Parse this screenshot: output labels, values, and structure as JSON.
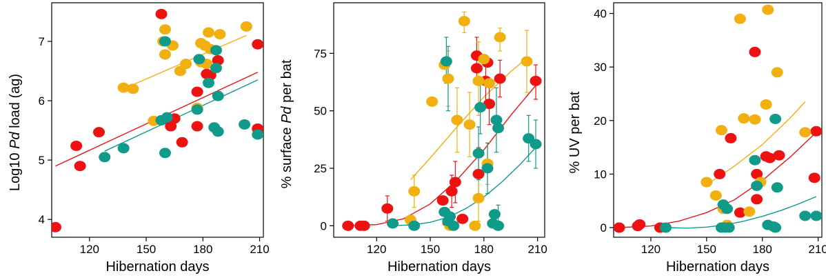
{
  "colors": {
    "red": "#ee1111",
    "orange": "#f2b010",
    "teal": "#109a8a"
  },
  "chart_data": [
    {
      "type": "scatter",
      "xlabel": "Hibernation days",
      "ylabel_parts": [
        "Log10 ",
        "Pd",
        " load (ag)"
      ],
      "xlim": [
        100,
        212
      ],
      "ylim": [
        3.7,
        7.65
      ],
      "xticks": [
        120,
        150,
        180,
        210
      ],
      "yticks": [
        4,
        5,
        6,
        7
      ],
      "series": [
        {
          "color_key": "red",
          "x": [
            102,
            113,
            115,
            125,
            158,
            163,
            165,
            169,
            177,
            177,
            182,
            184,
            188,
            209,
            209
          ],
          "y": [
            3.87,
            5.24,
            4.9,
            5.47,
            7.46,
            5.57,
            5.7,
            5.3,
            6.15,
            5.57,
            6.45,
            6.43,
            6.68,
            6.95,
            5.53
          ]
        },
        {
          "color_key": "orange",
          "x": [
            138,
            143,
            154,
            159,
            160,
            160,
            164,
            168,
            171,
            177,
            179,
            179,
            181,
            182,
            183,
            184,
            189,
            203
          ],
          "y": [
            6.22,
            6.2,
            5.66,
            7.0,
            6.78,
            7.2,
            6.93,
            6.5,
            6.62,
            5.88,
            6.97,
            6.65,
            6.93,
            6.62,
            7.15,
            6.87,
            7.12,
            7.25
          ]
        },
        {
          "color_key": "teal",
          "x": [
            128,
            138,
            158,
            160,
            160,
            161,
            177,
            178,
            183,
            186,
            187,
            187,
            188,
            188,
            202,
            209
          ],
          "y": [
            5.05,
            5.2,
            5.67,
            7.0,
            5.12,
            5.72,
            5.85,
            6.7,
            6.3,
            5.55,
            6.85,
            6.55,
            6.08,
            5.48,
            5.6,
            5.43
          ]
        }
      ],
      "fits": [
        {
          "color_key": "red",
          "x0": 102,
          "y0": 4.9,
          "x1": 209,
          "y1": 6.48
        },
        {
          "color_key": "orange",
          "x0": 138,
          "y0": 6.2,
          "x1": 203,
          "y1": 7.1
        },
        {
          "color_key": "teal",
          "x0": 128,
          "y0": 5.15,
          "x1": 209,
          "y1": 6.35
        }
      ]
    },
    {
      "type": "scatter",
      "xlabel": "Hibernation days",
      "ylabel_parts": [
        "% surface ",
        "Pd",
        " per bat"
      ],
      "xlim": [
        96,
        214
      ],
      "ylim": [
        -5,
        97
      ],
      "xticks": [
        120,
        150,
        180,
        210
      ],
      "yticks": [
        0,
        25,
        50,
        75
      ],
      "series": [
        {
          "color_key": "red",
          "x": [
            104,
            111,
            113,
            126,
            157,
            160,
            162,
            164,
            168,
            176,
            176,
            177,
            181,
            182,
            183,
            189,
            209
          ],
          "y": [
            0,
            0,
            0,
            7.5,
            11,
            1.5,
            15,
            19,
            3,
            74,
            68.5,
            22.5,
            63,
            71,
            53,
            64,
            63
          ]
        },
        {
          "color_key": "orange",
          "x": [
            139,
            141,
            151,
            158,
            160,
            161,
            165,
            169,
            172,
            175,
            177,
            177,
            180,
            182,
            183,
            189,
            204
          ],
          "y": [
            2.5,
            15,
            54,
            70,
            64,
            0,
            46,
            89,
            44,
            0,
            12,
            63,
            72.5,
            27,
            62,
            82,
            71.5
          ]
        },
        {
          "color_key": "teal",
          "x": [
            129,
            141,
            158,
            159,
            160,
            161,
            163,
            177,
            178,
            182,
            185,
            186,
            187,
            188,
            188,
            205,
            209
          ],
          "y": [
            1,
            0,
            6,
            71.5,
            2,
            4,
            0,
            31.5,
            51.5,
            25,
            1,
            5,
            46,
            42.5,
            0,
            38,
            35.5
          ]
        }
      ],
      "error_bars": [
        {
          "color_key": "red",
          "x": 126,
          "lo": 2,
          "hi": 13
        },
        {
          "color_key": "red",
          "x": 162,
          "lo": 8,
          "hi": 22
        },
        {
          "color_key": "red",
          "x": 164,
          "lo": 10,
          "hi": 28
        },
        {
          "color_key": "red",
          "x": 176,
          "lo": 62,
          "hi": 82
        },
        {
          "color_key": "red",
          "x": 177,
          "lo": 12,
          "hi": 34
        },
        {
          "color_key": "red",
          "x": 181,
          "lo": 54,
          "hi": 72
        },
        {
          "color_key": "red",
          "x": 183,
          "lo": 44,
          "hi": 62
        },
        {
          "color_key": "red",
          "x": 189,
          "lo": 56,
          "hi": 72
        },
        {
          "color_key": "red",
          "x": 209,
          "lo": 55,
          "hi": 70
        },
        {
          "color_key": "orange",
          "x": 141,
          "lo": 8,
          "hi": 22
        },
        {
          "color_key": "orange",
          "x": 160,
          "lo": 52,
          "hi": 76
        },
        {
          "color_key": "orange",
          "x": 165,
          "lo": 32,
          "hi": 60
        },
        {
          "color_key": "orange",
          "x": 169,
          "lo": 84,
          "hi": 93
        },
        {
          "color_key": "orange",
          "x": 172,
          "lo": 30,
          "hi": 58
        },
        {
          "color_key": "orange",
          "x": 177,
          "lo": 2,
          "hi": 22
        },
        {
          "color_key": "orange",
          "x": 177,
          "lo": 48,
          "hi": 80
        },
        {
          "color_key": "orange",
          "x": 182,
          "lo": 18,
          "hi": 36
        },
        {
          "color_key": "orange",
          "x": 189,
          "lo": 76,
          "hi": 86
        },
        {
          "color_key": "orange",
          "x": 204,
          "lo": 58,
          "hi": 85
        },
        {
          "color_key": "teal",
          "x": 159,
          "lo": 62,
          "hi": 82
        },
        {
          "color_key": "teal",
          "x": 160,
          "lo": 50,
          "hi": 78
        },
        {
          "color_key": "teal",
          "x": 177,
          "lo": 20,
          "hi": 43
        },
        {
          "color_key": "teal",
          "x": 178,
          "lo": 40,
          "hi": 63
        },
        {
          "color_key": "teal",
          "x": 182,
          "lo": 14,
          "hi": 36
        },
        {
          "color_key": "teal",
          "x": 187,
          "lo": 32,
          "hi": 60
        },
        {
          "color_key": "teal",
          "x": 188,
          "lo": 1,
          "hi": 9
        },
        {
          "color_key": "teal",
          "x": 205,
          "lo": 28,
          "hi": 48
        },
        {
          "color_key": "teal",
          "x": 209,
          "lo": 25,
          "hi": 46
        }
      ],
      "fits": [
        {
          "color_key": "red",
          "x": [
            104,
            120,
            135,
            150,
            165,
            180,
            195,
            209
          ],
          "y": [
            0,
            0.5,
            3,
            9.5,
            20,
            33,
            48,
            61
          ]
        },
        {
          "color_key": "orange",
          "x": [
            139,
            150,
            165,
            180,
            195,
            204
          ],
          "y": [
            20,
            29.5,
            43,
            56,
            67,
            73
          ]
        },
        {
          "color_key": "teal",
          "x": [
            129,
            140,
            150,
            160,
            170,
            180,
            190,
            200,
            209
          ],
          "y": [
            0,
            0.4,
            1.5,
            3.7,
            7.5,
            12.5,
            19,
            26.5,
            34
          ]
        }
      ]
    },
    {
      "type": "scatter",
      "xlabel": "Hibernation days",
      "ylabel_parts": [
        "% UV per bat"
      ],
      "xlim": [
        100,
        212
      ],
      "ylim": [
        -1.8,
        42
      ],
      "xticks": [
        120,
        150,
        180,
        210
      ],
      "yticks": [
        0,
        10,
        20,
        30,
        40
      ],
      "series": [
        {
          "color_key": "red",
          "x": [
            103,
            113,
            114,
            125,
            157,
            163,
            168,
            176,
            177,
            177,
            182,
            184,
            189,
            208,
            209
          ],
          "y": [
            0,
            0.3,
            0.6,
            0,
            10,
            16.7,
            2.8,
            32.8,
            5.3,
            10,
            13.3,
            13,
            13.5,
            9.3,
            18
          ]
        },
        {
          "color_key": "orange",
          "x": [
            150,
            155,
            158,
            159,
            161,
            168,
            170,
            173,
            176,
            179,
            182,
            183,
            188,
            203
          ],
          "y": [
            8.5,
            6,
            18.2,
            3.5,
            0.5,
            39,
            20.4,
            3,
            20.2,
            8.5,
            23,
            40.7,
            29,
            17.8
          ]
        },
        {
          "color_key": "teal",
          "x": [
            128,
            158,
            159,
            160,
            161,
            162,
            176,
            177,
            183,
            186,
            187,
            187,
            188,
            203,
            209
          ],
          "y": [
            0,
            0,
            4.3,
            0,
            3.5,
            0,
            12.6,
            7.8,
            0.5,
            0.2,
            20.3,
            0,
            7.5,
            2.2,
            2.2
          ]
        }
      ],
      "fits": [
        {
          "color_key": "red",
          "x": [
            103,
            120,
            135,
            150,
            165,
            180,
            195,
            209
          ],
          "y": [
            0,
            0.3,
            1.2,
            2.8,
            5.2,
            8.8,
            13.2,
            17.8
          ]
        },
        {
          "color_key": "orange",
          "x": [
            150,
            165,
            180,
            195,
            203
          ],
          "y": [
            8,
            11.5,
            15.5,
            20.5,
            23.5
          ]
        },
        {
          "color_key": "teal",
          "x": [
            128,
            140,
            150,
            160,
            170,
            180,
            190,
            200,
            209
          ],
          "y": [
            0,
            -0.1,
            0.1,
            0.5,
            1.2,
            2.1,
            3.2,
            4.5,
            5.8
          ]
        }
      ]
    }
  ]
}
